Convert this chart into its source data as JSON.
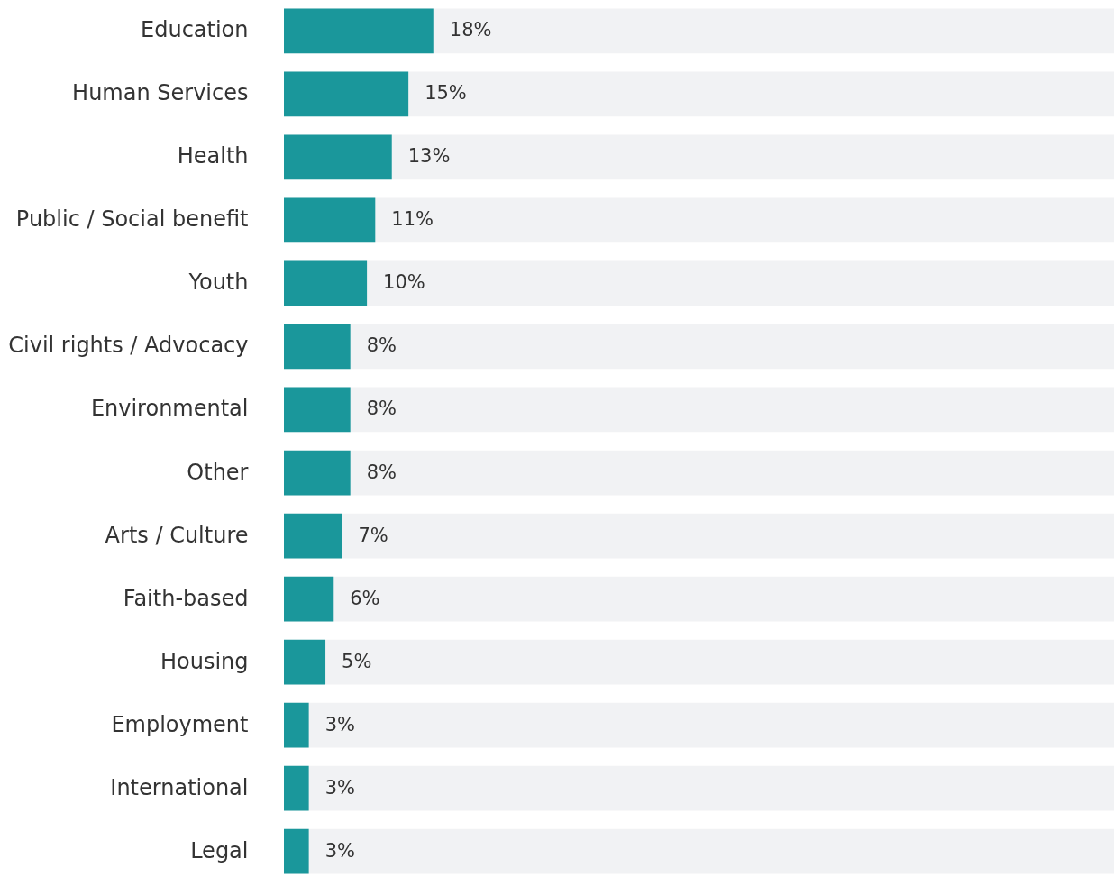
{
  "chart_data": {
    "type": "bar",
    "orientation": "horizontal",
    "categories": [
      "Education",
      "Human Services",
      "Health",
      "Public / Social benefit",
      "Youth",
      "Civil rights / Advocacy",
      "Environmental",
      "Other",
      "Arts / Culture",
      "Faith-based",
      "Housing",
      "Employment",
      "International",
      "Legal"
    ],
    "values": [
      18,
      15,
      13,
      11,
      10,
      8,
      8,
      8,
      7,
      6,
      5,
      3,
      3,
      3
    ],
    "value_labels": [
      "18%",
      "15%",
      "13%",
      "11%",
      "10%",
      "8%",
      "8%",
      "8%",
      "7%",
      "6%",
      "5%",
      "3%",
      "3%",
      "3%"
    ],
    "color": "#1a979b",
    "xlim": [
      0,
      100
    ],
    "bands": [
      {
        "axis": "x",
        "from": 0,
        "to": 100,
        "color": "#f1f2f4"
      }
    ],
    "tick_labels": "y"
  }
}
